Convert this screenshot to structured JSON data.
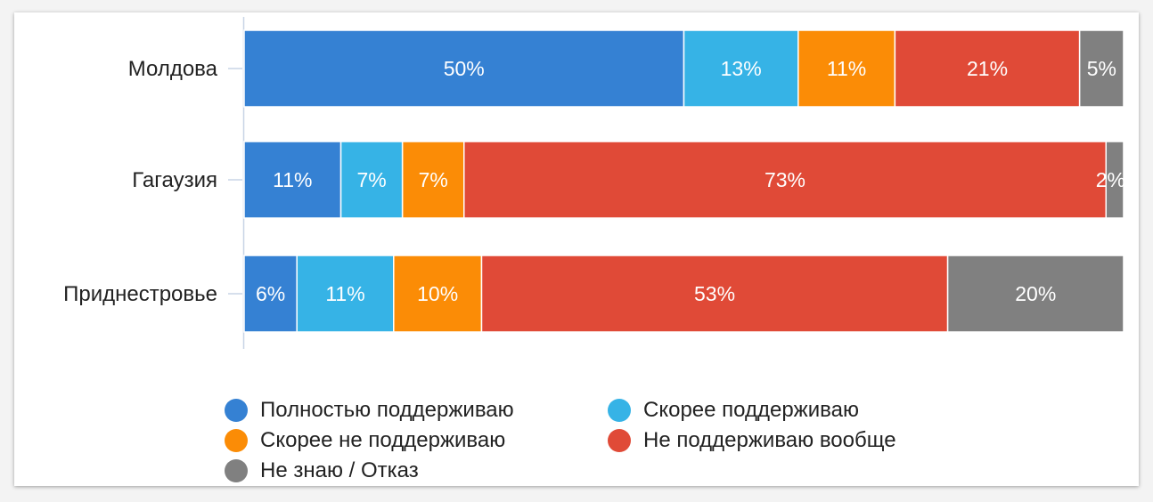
{
  "chart_data": {
    "type": "bar",
    "orientation": "horizontal",
    "stacked": true,
    "categories": [
      "Молдова",
      "Гагаузия",
      "Приднестровье"
    ],
    "series": [
      {
        "name": "Полностью поддерживаю",
        "color": "#3581d3",
        "values": [
          50,
          11,
          6
        ],
        "labels": [
          "50%",
          "11%",
          "6%"
        ]
      },
      {
        "name": "Скорее поддерживаю",
        "color": "#36b3e6",
        "values": [
          13,
          7,
          11
        ],
        "labels": [
          "13%",
          "7%",
          "11%"
        ]
      },
      {
        "name": "Скорее не поддерживаю",
        "color": "#fb8c06",
        "values": [
          11,
          7,
          10
        ],
        "labels": [
          "11%",
          "7%",
          "10%"
        ]
      },
      {
        "name": "Не поддерживаю вообще",
        "color": "#e04a37",
        "values": [
          21,
          73,
          53
        ],
        "labels": [
          "21%",
          "73%",
          "53%"
        ]
      },
      {
        "name": "Не знаю / Отказ",
        "color": "#808080",
        "values": [
          5,
          2,
          20
        ],
        "labels": [
          "5%",
          "2%",
          "20%"
        ]
      }
    ],
    "xlim": [
      0,
      100
    ],
    "grid": false,
    "legend_position": "bottom"
  }
}
